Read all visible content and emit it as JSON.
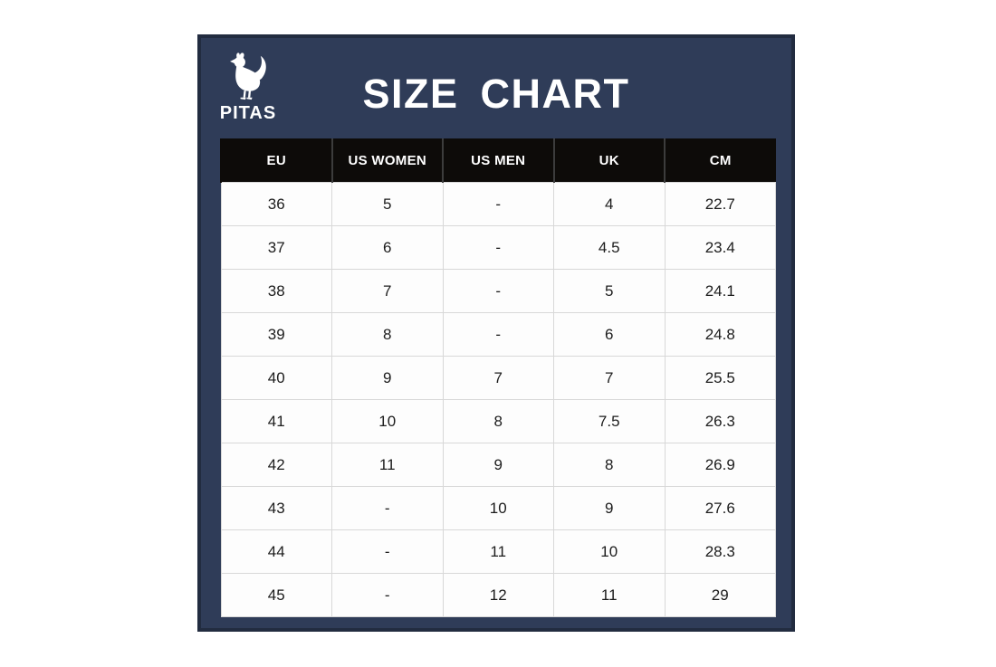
{
  "brand": {
    "name": "PITAS",
    "logo_icon": "rooster-icon"
  },
  "title": "SIZE CHART",
  "colors": {
    "page_bg": "#ffffff",
    "panel_bg": "#2f3c58",
    "panel_border": "#222c40",
    "header_bg": "#0d0b09",
    "header_divider": "#3c3c3c",
    "header_text": "#ffffff",
    "row_bg": "#fdfdfd",
    "row_border": "#d8d8d8",
    "cell_text": "#1c1c1c",
    "logo_color": "#ffffff"
  },
  "chart_data": {
    "type": "table",
    "title": "SIZE CHART",
    "columns": [
      "EU",
      "US WOMEN",
      "US MEN",
      "UK",
      "CM"
    ],
    "rows": [
      [
        "36",
        "5",
        "-",
        "4",
        "22.7"
      ],
      [
        "37",
        "6",
        "-",
        "4.5",
        "23.4"
      ],
      [
        "38",
        "7",
        "-",
        "5",
        "24.1"
      ],
      [
        "39",
        "8",
        "-",
        "6",
        "24.8"
      ],
      [
        "40",
        "9",
        "7",
        "7",
        "25.5"
      ],
      [
        "41",
        "10",
        "8",
        "7.5",
        "26.3"
      ],
      [
        "42",
        "11",
        "9",
        "8",
        "26.9"
      ],
      [
        "43",
        "-",
        "10",
        "9",
        "27.6"
      ],
      [
        "44",
        "-",
        "11",
        "10",
        "28.3"
      ],
      [
        "45",
        "-",
        "12",
        "11",
        "29"
      ]
    ]
  }
}
